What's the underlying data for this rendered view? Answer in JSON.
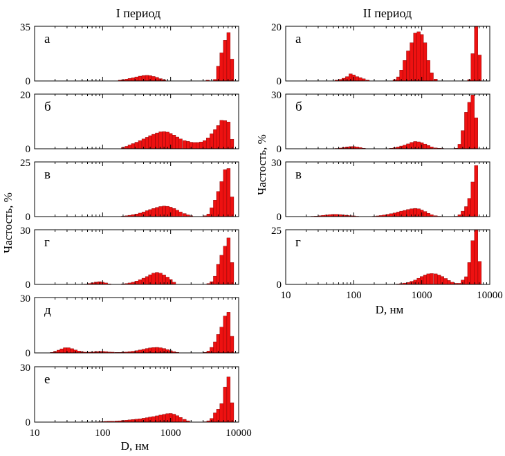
{
  "column_titles": [
    "I период",
    "II период"
  ],
  "y_axis_label": "Частость, %",
  "x_axis_label": "D, нм",
  "x_tick_labels": [
    "10",
    "100",
    "1000",
    "10000"
  ],
  "colors": {
    "bar": "#ee1111",
    "bar_edge": "#7a0000",
    "axis": "#000000"
  },
  "chart_data": [
    {
      "type": "bar",
      "period": "I период",
      "panel": "а",
      "xscale": "log",
      "xlim": [
        10,
        10000
      ],
      "ylim": [
        0,
        35
      ],
      "yticks": [
        "0",
        "35"
      ],
      "x": [
        180,
        200,
        225,
        250,
        280,
        315,
        355,
        400,
        450,
        500,
        560,
        630,
        710,
        800,
        3500,
        4500,
        5000,
        5600,
        6300,
        7100,
        8000
      ],
      "values": [
        0.5,
        0.8,
        1.2,
        1.6,
        2.0,
        2.6,
        3.1,
        3.5,
        3.6,
        3.4,
        2.9,
        2.3,
        1.5,
        0.8,
        0.5,
        1.0,
        9.5,
        18.0,
        26.0,
        31.0,
        14.0
      ]
    },
    {
      "type": "bar",
      "period": "I период",
      "panel": "б",
      "xscale": "log",
      "xlim": [
        10,
        10000
      ],
      "ylim": [
        0,
        20
      ],
      "yticks": [
        "0",
        "20"
      ],
      "x": [
        200,
        225,
        250,
        280,
        315,
        355,
        400,
        450,
        500,
        560,
        630,
        710,
        800,
        900,
        1000,
        1120,
        1250,
        1400,
        1600,
        1800,
        2000,
        2250,
        2500,
        2800,
        3150,
        3550,
        4000,
        4500,
        5000,
        5600,
        6300,
        7100,
        8000
      ],
      "values": [
        0.5,
        0.9,
        1.4,
        1.9,
        2.4,
        3.0,
        3.6,
        4.2,
        4.8,
        5.3,
        5.8,
        6.2,
        6.3,
        6.1,
        5.6,
        5.0,
        4.3,
        3.6,
        3.0,
        2.7,
        2.4,
        2.3,
        2.3,
        2.5,
        3.0,
        4.0,
        5.5,
        7.0,
        8.5,
        10.4,
        10.3,
        9.8,
        3.5
      ]
    },
    {
      "type": "bar",
      "period": "I период",
      "panel": "в",
      "xscale": "log",
      "xlim": [
        10,
        10000
      ],
      "ylim": [
        0,
        25
      ],
      "yticks": [
        "0",
        "25"
      ],
      "x": [
        200,
        225,
        250,
        280,
        315,
        355,
        400,
        450,
        500,
        560,
        630,
        710,
        800,
        900,
        1000,
        1120,
        1250,
        1400,
        1600,
        1800,
        2000,
        3200,
        3600,
        4000,
        4500,
        5000,
        5600,
        6300,
        7100,
        8000
      ],
      "values": [
        0.2,
        0.4,
        0.6,
        0.9,
        1.2,
        1.6,
        2.1,
        2.7,
        3.2,
        3.7,
        4.2,
        4.6,
        4.8,
        4.7,
        4.3,
        3.7,
        2.9,
        2.1,
        1.4,
        0.8,
        0.4,
        0.4,
        1.2,
        4.0,
        7.5,
        11.5,
        16.0,
        21.5,
        22.0,
        9.0
      ]
    },
    {
      "type": "bar",
      "period": "I период",
      "panel": "г",
      "xscale": "log",
      "xlim": [
        10,
        10000
      ],
      "ylim": [
        0,
        30
      ],
      "yticks": [
        "0",
        "30"
      ],
      "x": [
        56,
        63,
        71,
        80,
        90,
        100,
        112,
        125,
        170,
        200,
        225,
        250,
        280,
        315,
        355,
        400,
        450,
        500,
        560,
        630,
        710,
        800,
        900,
        1000,
        1120,
        3600,
        4000,
        4500,
        5000,
        5600,
        6300,
        7100,
        8000
      ],
      "values": [
        0.2,
        0.5,
        0.9,
        1.3,
        1.5,
        1.2,
        0.8,
        0.3,
        0.1,
        0.3,
        0.5,
        0.8,
        1.2,
        1.8,
        2.6,
        3.4,
        4.3,
        5.3,
        6.2,
        6.6,
        6.2,
        5.2,
        4.0,
        2.7,
        1.2,
        0.5,
        1.5,
        4.5,
        11.0,
        16.0,
        21.0,
        25.5,
        12.0
      ]
    },
    {
      "type": "bar",
      "period": "I период",
      "panel": "д",
      "xscale": "log",
      "xlim": [
        10,
        10000
      ],
      "ylim": [
        0,
        30
      ],
      "yticks": [
        "0",
        "30"
      ],
      "x": [
        18,
        20,
        22.5,
        25,
        28,
        31.5,
        35.5,
        40,
        45,
        50,
        56,
        63,
        71,
        80,
        90,
        100,
        112,
        125,
        140,
        160,
        180,
        200,
        225,
        250,
        280,
        315,
        355,
        400,
        450,
        500,
        560,
        630,
        710,
        800,
        900,
        1000,
        1120,
        1250,
        3200,
        3600,
        4000,
        4500,
        5000,
        5600,
        6300,
        7100,
        8000
      ],
      "values": [
        0.3,
        0.8,
        1.5,
        2.2,
        2.8,
        2.8,
        2.3,
        1.6,
        1.0,
        0.6,
        0.4,
        0.4,
        0.5,
        0.7,
        0.8,
        0.8,
        0.7,
        0.5,
        0.4,
        0.3,
        0.3,
        0.4,
        0.5,
        0.7,
        0.9,
        1.2,
        1.6,
        2.0,
        2.4,
        2.7,
        2.9,
        3.0,
        2.8,
        2.4,
        1.8,
        1.2,
        0.7,
        0.3,
        0.3,
        1.0,
        3.0,
        6.0,
        10.0,
        14.0,
        20.0,
        22.0,
        9.0
      ]
    },
    {
      "type": "bar",
      "period": "I период",
      "panel": "е",
      "xscale": "log",
      "xlim": [
        10,
        10000
      ],
      "ylim": [
        0,
        30
      ],
      "yticks": [
        "0",
        "30"
      ],
      "x": [
        90,
        100,
        112,
        125,
        140,
        160,
        180,
        200,
        225,
        250,
        280,
        315,
        355,
        400,
        450,
        500,
        560,
        630,
        710,
        800,
        900,
        1000,
        1120,
        1250,
        1400,
        1600,
        1800,
        3200,
        3600,
        4000,
        4500,
        5000,
        5600,
        6300,
        7100,
        8000
      ],
      "values": [
        0.2,
        0.3,
        0.4,
        0.5,
        0.5,
        0.6,
        0.7,
        0.9,
        1.0,
        1.2,
        1.4,
        1.6,
        1.8,
        2.1,
        2.4,
        2.7,
        3.0,
        3.4,
        3.8,
        4.2,
        4.6,
        4.7,
        4.3,
        3.5,
        2.5,
        1.5,
        0.7,
        0.2,
        0.7,
        2.0,
        5.0,
        7.0,
        10.0,
        19.0,
        24.5,
        10.5
      ]
    },
    {
      "type": "bar",
      "period": "II период",
      "panel": "а",
      "xscale": "log",
      "xlim": [
        10,
        10000
      ],
      "ylim": [
        0,
        20
      ],
      "yticks": [
        "0",
        "20"
      ],
      "x": [
        56,
        63,
        71,
        80,
        90,
        100,
        112,
        125,
        140,
        160,
        400,
        450,
        500,
        560,
        630,
        710,
        800,
        900,
        1000,
        1120,
        1250,
        1400,
        1600,
        5000,
        5600,
        6300,
        7100
      ],
      "values": [
        0.3,
        0.6,
        1.0,
        1.6,
        2.6,
        2.2,
        1.6,
        1.2,
        0.8,
        0.3,
        0.5,
        1.5,
        4.0,
        7.5,
        11.0,
        14.0,
        17.5,
        18.0,
        17.0,
        14.0,
        7.5,
        3.0,
        0.7,
        0.5,
        10.0,
        20.0,
        9.5
      ]
    },
    {
      "type": "bar",
      "period": "II период",
      "panel": "б",
      "xscale": "log",
      "xlim": [
        10,
        10000
      ],
      "ylim": [
        0,
        30
      ],
      "yticks": [
        "0",
        "30"
      ],
      "x": [
        56,
        63,
        71,
        80,
        90,
        100,
        112,
        125,
        140,
        355,
        400,
        450,
        500,
        560,
        630,
        710,
        800,
        900,
        1000,
        1120,
        1250,
        1400,
        1600,
        1800,
        2000,
        3200,
        3600,
        4000,
        4500,
        5000,
        5600,
        6300
      ],
      "values": [
        0.2,
        0.4,
        0.7,
        1.0,
        1.2,
        1.2,
        1.0,
        0.7,
        0.3,
        0.3,
        0.6,
        1.0,
        1.5,
        2.0,
        2.7,
        3.5,
        4.0,
        3.8,
        3.3,
        2.6,
        1.8,
        1.0,
        0.5,
        0.3,
        0.2,
        0.3,
        2.5,
        10.0,
        20.0,
        25.5,
        29.5,
        17.0
      ]
    },
    {
      "type": "bar",
      "period": "II период",
      "panel": "в",
      "xscale": "log",
      "xlim": [
        10,
        10000
      ],
      "ylim": [
        0,
        30
      ],
      "yticks": [
        "0",
        "30"
      ],
      "x": [
        25,
        28,
        31.5,
        35.5,
        40,
        45,
        50,
        56,
        63,
        71,
        80,
        90,
        100,
        112,
        200,
        225,
        250,
        280,
        315,
        355,
        400,
        450,
        500,
        560,
        630,
        710,
        800,
        900,
        1000,
        1120,
        1250,
        1400,
        1600,
        1800,
        3200,
        3600,
        4000,
        4500,
        5000,
        5600,
        6300
      ],
      "values": [
        0.2,
        0.3,
        0.5,
        0.7,
        0.9,
        1.1,
        1.2,
        1.2,
        1.1,
        0.9,
        0.7,
        0.5,
        0.4,
        0.2,
        0.2,
        0.4,
        0.6,
        0.9,
        1.2,
        1.6,
        2.0,
        2.5,
        3.0,
        3.4,
        3.9,
        4.3,
        4.5,
        4.3,
        3.6,
        2.8,
        1.8,
        1.0,
        0.5,
        0.2,
        0.2,
        1.0,
        3.0,
        5.5,
        10.0,
        19.0,
        28.0
      ]
    },
    {
      "type": "bar",
      "period": "II период",
      "panel": "г",
      "xscale": "log",
      "xlim": [
        10,
        10000
      ],
      "ylim": [
        0,
        25
      ],
      "yticks": [
        "0",
        "25"
      ],
      "x": [
        450,
        500,
        560,
        630,
        710,
        800,
        900,
        1000,
        1120,
        1250,
        1400,
        1600,
        1800,
        2000,
        2250,
        2500,
        2800,
        3150,
        3550,
        4000,
        4500,
        5000,
        5600,
        6300,
        7100
      ],
      "values": [
        0.2,
        0.4,
        0.6,
        0.9,
        1.4,
        2.0,
        2.8,
        3.6,
        4.3,
        4.8,
        5.0,
        4.8,
        4.3,
        3.6,
        2.7,
        1.8,
        1.0,
        0.5,
        0.5,
        2.0,
        3.5,
        10.0,
        20.0,
        25.0,
        10.5
      ]
    }
  ]
}
